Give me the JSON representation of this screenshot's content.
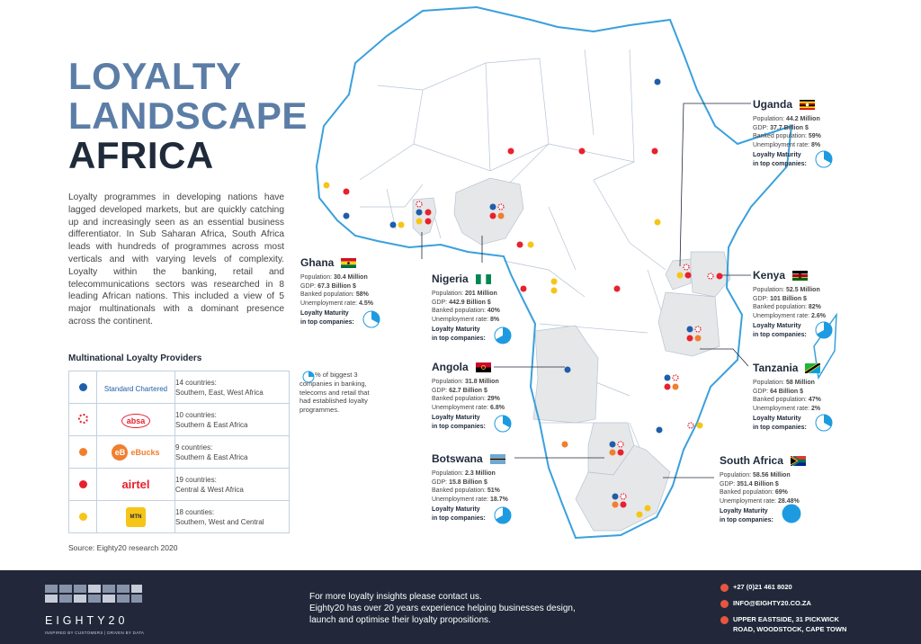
{
  "title": {
    "line1": "LOYALTY",
    "line2": "LANDSCAPE",
    "line3": "AFRICA"
  },
  "intro": "Loyalty programmes in developing nations have lagged developed markets, but are quickly catching up and increasingly seen as an essential business differentiator. In Sub Saharan Africa, South Africa leads with hundreds of programmes across most verticals and with varying levels of complexity. Loyalty within the banking, retail and telecommunications sectors was researched in 8 leading African nations. This included a view of 5 major multinationals with a dominant presence across the continent.",
  "providers": {
    "title": "Multinational Loyalty Providers",
    "items": [
      {
        "logo": "Standard Chartered",
        "logo_line2": "Chartered",
        "line1": "14 countries:",
        "line2": "Southern, East, West Africa",
        "dot": "blue"
      },
      {
        "logo": "absa",
        "line1": "10 countries:",
        "line2": "Southern & East Africa",
        "dot": "absa"
      },
      {
        "logo": "eBucks",
        "line1": "9 countries:",
        "line2": "Southern & East Africa",
        "dot": "orange"
      },
      {
        "logo": "airtel",
        "line1": "19 countries:",
        "line2": "Central & West Africa",
        "dot": "red"
      },
      {
        "logo": "MTN",
        "line1": "18 counties:",
        "line2": "Southern, West and Central",
        "dot": "yellow"
      }
    ]
  },
  "legend_text": "% of biggest 3 companies in banking, telecoms and retail that had established loyalty programmes.",
  "source": "Source: Eighty20 research 2020",
  "labels": {
    "population": "Population:",
    "gdp": "GDP:",
    "banked": "Banked population:",
    "unemployment": "Unemployment rate:",
    "loyalty1": "Loyalty Maturity",
    "loyalty2": "in top companies:"
  },
  "countries": {
    "ghana": {
      "name": "Ghana",
      "population": "30.4 Million",
      "gdp": "67.3 Billion $",
      "banked": "58%",
      "unemployment": "4.5%",
      "maturity": 0.33
    },
    "nigeria": {
      "name": "Nigeria",
      "population": "201 Million",
      "gdp": "442.9 Billion $",
      "banked": "40%",
      "unemployment": "8%",
      "maturity": 0.67
    },
    "angola": {
      "name": "Angola",
      "population": "31.8 Million",
      "gdp": "62.7 Billion $",
      "banked": "29%",
      "unemployment": "6.8%",
      "maturity": 0.33
    },
    "botswana": {
      "name": "Botswana",
      "population": "2.3 Million",
      "gdp": "15.8 Billion $",
      "banked": "51%",
      "unemployment": "18.7%",
      "maturity": 0.67
    },
    "uganda": {
      "name": "Uganda",
      "population": "44.2 Million",
      "gdp": "37.7 Billion $",
      "banked": "59%",
      "unemployment": "8%",
      "maturity": 0.33
    },
    "kenya": {
      "name": "Kenya",
      "population": "52.5 Million",
      "gdp": "101 Billion $",
      "banked": "82%",
      "unemployment": "2.6%",
      "maturity": 0.67
    },
    "tanzania": {
      "name": "Tanzania",
      "population": "58 Million",
      "gdp": "64 Billion $",
      "banked": "47%",
      "unemployment": "2%",
      "maturity": 0.33
    },
    "south_africa": {
      "name": "South Africa",
      "population": "58.56 Million",
      "gdp": "351.4 Billion $",
      "banked": "69%",
      "unemployment": "28.48%",
      "maturity": 1.0
    }
  },
  "footer": {
    "contact_line1": "For more loyalty insights please contact us.",
    "contact_line2": "Eighty20 has over 20 years experience helping businesses design, launch and optimise their loyalty propositions.",
    "phone": "+27 (0)21 461 8020",
    "email": "INFO@EIGHTY20.CO.ZA",
    "address_line1": "UPPER EASTSIDE, 31 PICKWICK",
    "address_line2": "ROAD, WOODSTOCK, CAPE TOWN",
    "logo": "EIGHTY20",
    "tagline": "INSPIRED BY CUSTOMERS  |  DRIVEN BY DATA"
  },
  "colors": {
    "accent": "#5b7da6",
    "dark": "#1f2a3a",
    "map_line": "#3aa0dd",
    "highlight_fill": "#e6e7e8",
    "pie": "#1e9be0",
    "footer": "#22283a"
  }
}
